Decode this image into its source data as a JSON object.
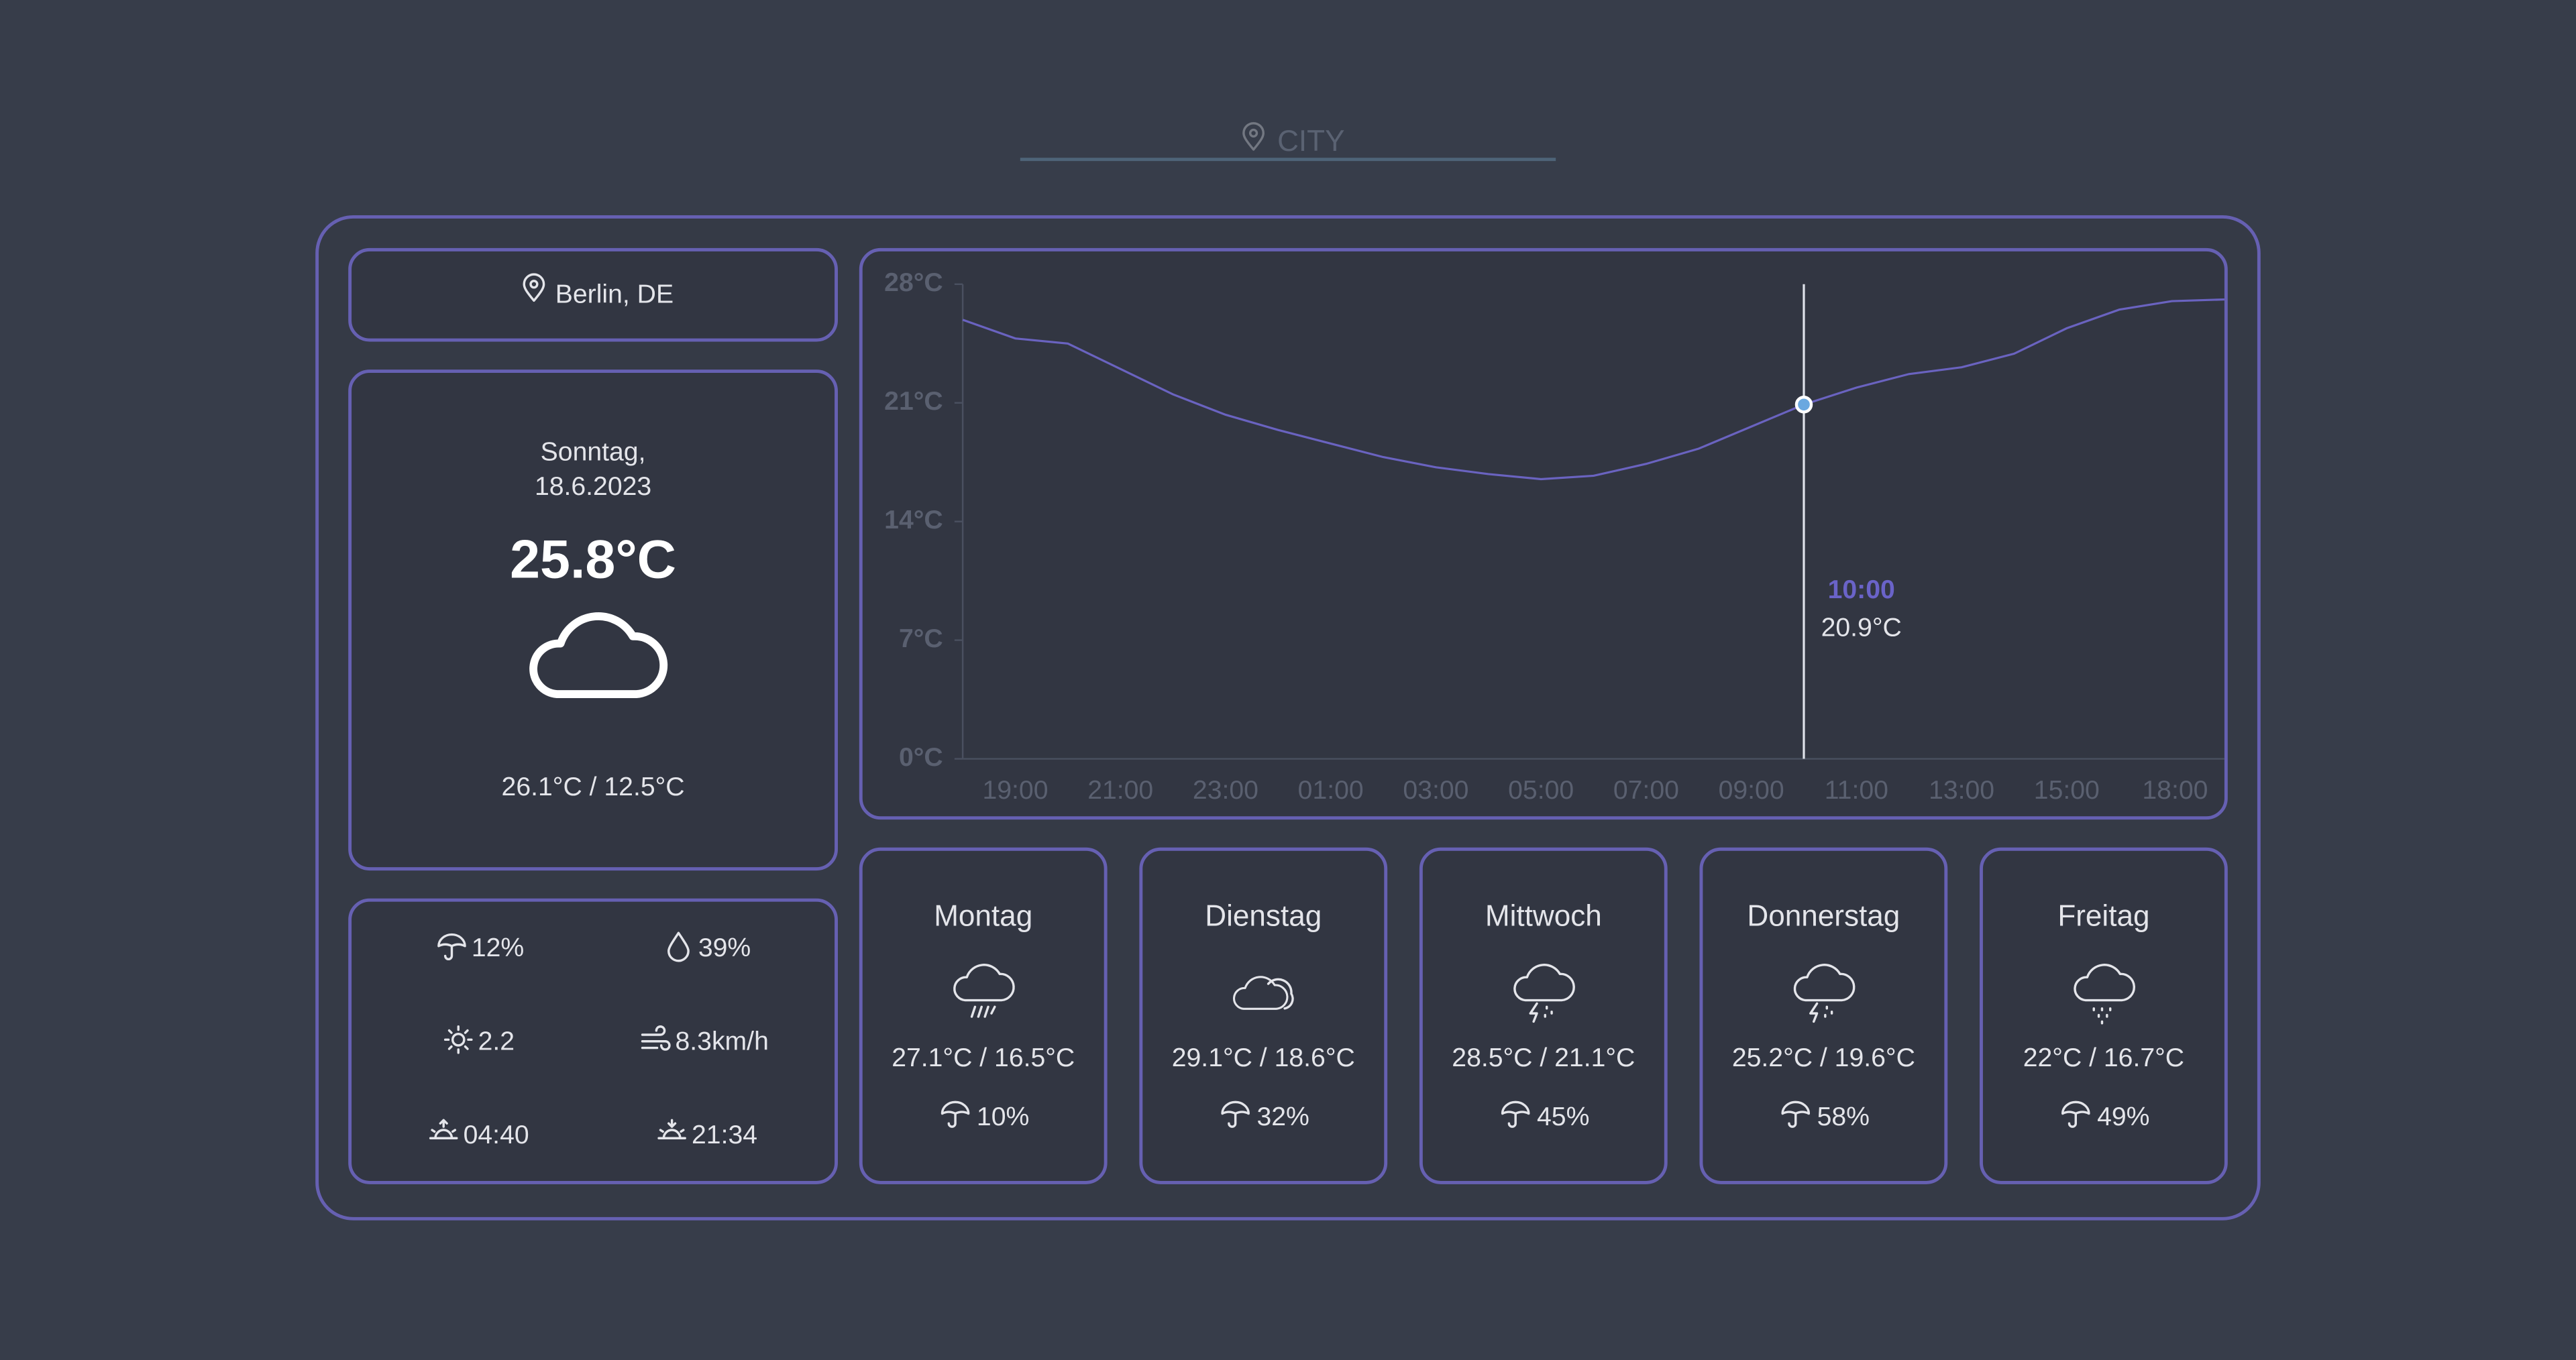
{
  "search": {
    "placeholder": "CITY"
  },
  "location": "Berlin, DE",
  "current": {
    "day": "Sonntag,",
    "date": "18.6.2023",
    "temperature": "25.8°C",
    "high_low": "26.1°C / 12.5°C"
  },
  "details": {
    "precipitation": "12%",
    "humidity": "39%",
    "uv_index": "2.2",
    "wind": "8.3km/h",
    "sunrise": "04:40",
    "sunset": "21:34"
  },
  "chart_data": {
    "type": "line",
    "categories": [
      null,
      "19:00",
      null,
      "21:00",
      null,
      "23:00",
      null,
      "01:00",
      null,
      "03:00",
      null,
      "05:00",
      null,
      "07:00",
      null,
      "09:00",
      null,
      "11:00",
      null,
      "13:00",
      null,
      "15:00",
      null,
      null,
      "18:00"
    ],
    "series": [
      {
        "color": "#6a63c0",
        "values": [
          25.9,
          24.8,
          24.5,
          23.0,
          21.5,
          20.3,
          19.4,
          18.6,
          17.8,
          17.2,
          16.8,
          16.5,
          16.7,
          17.4,
          18.3,
          19.6,
          20.9,
          21.9,
          22.7,
          23.1,
          23.9,
          25.4,
          26.5,
          27.0,
          27.1
        ]
      }
    ],
    "ylim": [
      0,
      28
    ],
    "yticks": [
      {
        "value": 0,
        "label": "0°C"
      },
      {
        "value": 7,
        "label": "7°C"
      },
      {
        "value": 14,
        "label": "14°C"
      },
      {
        "value": 21,
        "label": "21°C"
      },
      {
        "value": 28,
        "label": "28°C"
      }
    ],
    "tooltip": {
      "label": "10:00",
      "value_label": "20.9°C"
    }
  },
  "forecast": [
    {
      "day": "Montag",
      "temps": "27.1°C / 16.5°C",
      "rain": "10%"
    },
    {
      "day": "Dienstag",
      "temps": "29.1°C / 18.6°C",
      "rain": "32%"
    },
    {
      "day": "Mittwoch",
      "temps": "28.5°C / 21.1°C",
      "rain": "45%"
    },
    {
      "day": "Donnerstag",
      "temps": "25.2°C / 19.6°C",
      "rain": "58%"
    },
    {
      "day": "Freitag",
      "temps": "22°C / 16.7°C",
      "rain": "49%"
    }
  ]
}
